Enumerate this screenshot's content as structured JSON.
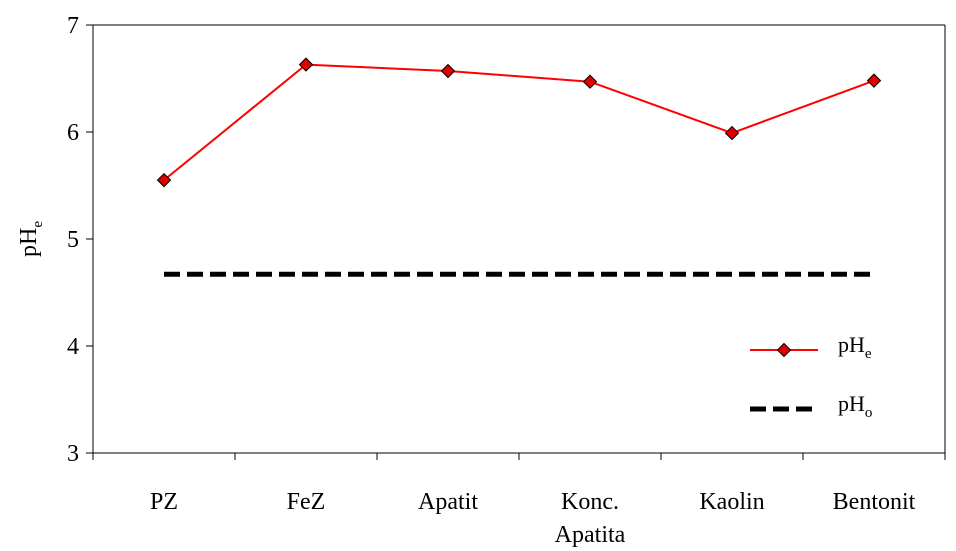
{
  "chart_data": {
    "type": "line",
    "categories": [
      [
        "PZ"
      ],
      [
        "FeZ"
      ],
      [
        "Apatit"
      ],
      [
        "Konc.",
        "Apatita"
      ],
      [
        "Kaolin"
      ],
      [
        "Bentonit"
      ]
    ],
    "series": [
      {
        "name": "pH",
        "subscript": "e",
        "style": "solid-line-diamond",
        "color": "#ff0000",
        "marker_color": "#e00000",
        "values": [
          5.55,
          6.63,
          6.57,
          6.47,
          5.99,
          6.48
        ]
      },
      {
        "name": "pH",
        "subscript": "o",
        "style": "dashed",
        "color": "#000000",
        "values": [
          4.67,
          4.67,
          4.67,
          4.67,
          4.67,
          4.67
        ]
      }
    ],
    "ylabel": {
      "text": "pH",
      "subscript": "e"
    },
    "ylim": [
      3,
      7
    ],
    "yticks": [
      3,
      4,
      5,
      6,
      7
    ],
    "grid": false,
    "legend_position": "bottom-right"
  }
}
